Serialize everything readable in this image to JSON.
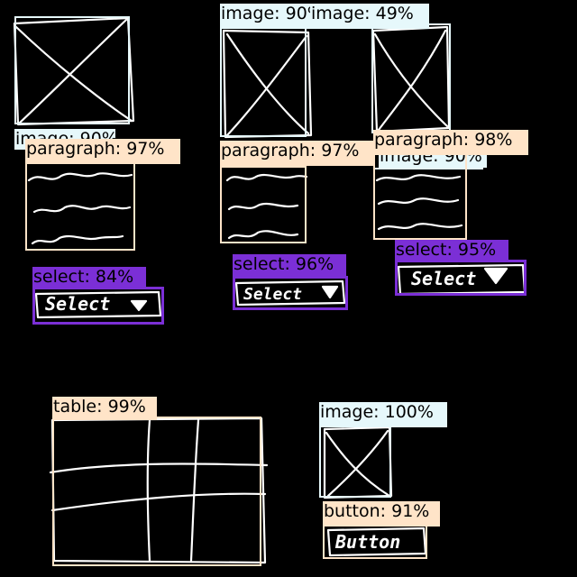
{
  "detections": [
    {
      "id": "image-1",
      "kind": "image",
      "label": "image: 90%",
      "score": 0.9
    },
    {
      "id": "paragraph-1",
      "kind": "paragraph",
      "label": "paragraph: 97%",
      "score": 0.97
    },
    {
      "id": "select-1",
      "kind": "select",
      "label": "select: 84%",
      "score": 0.84
    },
    {
      "id": "image-2",
      "kind": "image",
      "label": "image: 90%",
      "score": 0.9
    },
    {
      "id": "image-3",
      "kind": "image",
      "label": "image: 49%",
      "score": 0.49
    },
    {
      "id": "paragraph-2",
      "kind": "paragraph",
      "label": "paragraph: 97%",
      "score": 0.97
    },
    {
      "id": "select-2",
      "kind": "select",
      "label": "select: 96%",
      "score": 0.96
    },
    {
      "id": "image-4",
      "kind": "image",
      "label": "image: 90%",
      "score": 0.9
    },
    {
      "id": "paragraph-3",
      "kind": "paragraph",
      "label": "paragraph: 98%",
      "score": 0.98
    },
    {
      "id": "select-3",
      "kind": "select",
      "label": "select: 95%",
      "score": 0.95
    },
    {
      "id": "table-1",
      "kind": "table",
      "label": "table: 99%",
      "score": 0.99
    },
    {
      "id": "image-5",
      "kind": "image",
      "label": "image: 100%",
      "score": 1.0
    },
    {
      "id": "button-1",
      "kind": "button",
      "label": "button: 91%",
      "score": 0.91
    }
  ],
  "sketch": {
    "select_text": "Select",
    "button_text": "Button"
  }
}
